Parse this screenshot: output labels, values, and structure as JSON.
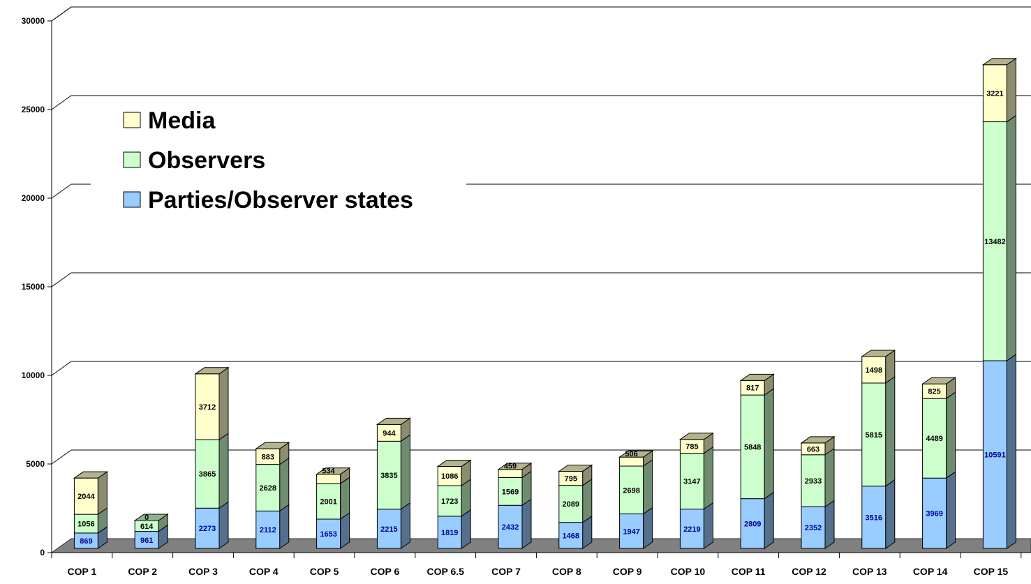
{
  "chart_data": {
    "type": "bar",
    "stacked": true,
    "three_d": true,
    "categories": [
      "COP 1",
      "COP 2",
      "COP 3",
      "COP 4",
      "COP 5",
      "COP 6",
      "COP 6.5",
      "COP 7",
      "COP 8",
      "COP 9",
      "COP 10",
      "COP 11",
      "COP 12",
      "COP 13",
      "COP 14",
      "COP 15"
    ],
    "series": [
      {
        "name": "Parties/Observer states",
        "color": "#99ccff",
        "values": [
          869,
          961,
          2273,
          2112,
          1653,
          2215,
          1819,
          2432,
          1468,
          1947,
          2219,
          2809,
          2352,
          3516,
          3969,
          10591
        ]
      },
      {
        "name": "Observers",
        "color": "#ccffcc",
        "values": [
          1056,
          614,
          3865,
          2628,
          2001,
          3835,
          1723,
          1569,
          2089,
          2698,
          3147,
          5848,
          2933,
          5815,
          4489,
          13482
        ]
      },
      {
        "name": "Media",
        "color": "#ffffcc",
        "values": [
          2044,
          0,
          3712,
          883,
          534,
          944,
          1086,
          459,
          795,
          506,
          785,
          817,
          663,
          1498,
          825,
          3221
        ]
      }
    ],
    "yticks": [
      0,
      5000,
      10000,
      15000,
      20000,
      25000,
      30000
    ],
    "ylim": [
      0,
      30000
    ],
    "grid": true,
    "legend_position": "top-left",
    "title": "",
    "xlabel": "",
    "ylabel": ""
  }
}
